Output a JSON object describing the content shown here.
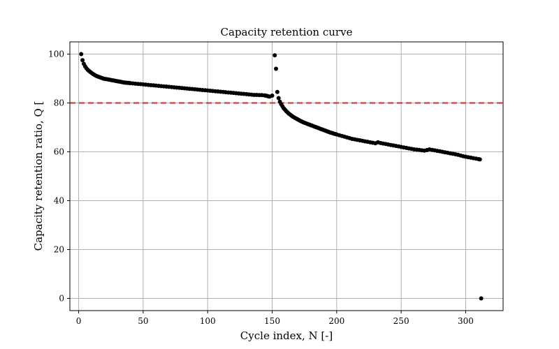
{
  "chart_data": {
    "type": "scatter",
    "title": "Capacity retention curve",
    "xlabel": "Cycle index, N [-]",
    "ylabel": "Capacity retention ratio, Q [",
    "xlim": [
      -6.8,
      329
    ],
    "ylim": [
      -5,
      105
    ],
    "xticks": [
      0,
      50,
      100,
      150,
      200,
      250,
      300
    ],
    "yticks": [
      0,
      20,
      40,
      60,
      80,
      100
    ],
    "grid": true,
    "point_color": "#000000",
    "reference_line": {
      "y": 80,
      "color": "#d62728",
      "style": "dashed"
    },
    "series": [
      {
        "points": [
          [
            2,
            100.0
          ],
          [
            3,
            97.5
          ],
          [
            4,
            96.0
          ],
          [
            5,
            95.0
          ],
          [
            6,
            94.2
          ],
          [
            7,
            93.6
          ],
          [
            8,
            93.1
          ],
          [
            9,
            92.7
          ],
          [
            10,
            92.3
          ],
          [
            11,
            91.9
          ],
          [
            12,
            91.6
          ],
          [
            13,
            91.3
          ],
          [
            14,
            91.0
          ],
          [
            15,
            90.8
          ],
          [
            16,
            90.6
          ],
          [
            17,
            90.4
          ],
          [
            18,
            90.2
          ],
          [
            19,
            90.0
          ],
          [
            20,
            89.9
          ],
          [
            21,
            89.8
          ],
          [
            22,
            89.7
          ],
          [
            23,
            89.6
          ],
          [
            24,
            89.5
          ],
          [
            25,
            89.4
          ],
          [
            26,
            89.3
          ],
          [
            27,
            89.2
          ],
          [
            28,
            89.1
          ],
          [
            29,
            89.0
          ],
          [
            30,
            88.9
          ],
          [
            31,
            88.8
          ],
          [
            32,
            88.7
          ],
          [
            33,
            88.6
          ],
          [
            34,
            88.5
          ],
          [
            35,
            88.4
          ],
          [
            36,
            88.3
          ],
          [
            37,
            88.3
          ],
          [
            38,
            88.2
          ],
          [
            39,
            88.2
          ],
          [
            40,
            88.1
          ],
          [
            42,
            88.0
          ],
          [
            44,
            87.9
          ],
          [
            46,
            87.8
          ],
          [
            48,
            87.7
          ],
          [
            50,
            87.6
          ],
          [
            52,
            87.5
          ],
          [
            54,
            87.4
          ],
          [
            56,
            87.3
          ],
          [
            58,
            87.2
          ],
          [
            60,
            87.1
          ],
          [
            62,
            87.0
          ],
          [
            64,
            86.9
          ],
          [
            66,
            86.8
          ],
          [
            68,
            86.7
          ],
          [
            70,
            86.6
          ],
          [
            72,
            86.5
          ],
          [
            74,
            86.4
          ],
          [
            76,
            86.3
          ],
          [
            78,
            86.2
          ],
          [
            80,
            86.1
          ],
          [
            82,
            86.0
          ],
          [
            84,
            85.9
          ],
          [
            86,
            85.8
          ],
          [
            88,
            85.7
          ],
          [
            90,
            85.6
          ],
          [
            92,
            85.5
          ],
          [
            94,
            85.4
          ],
          [
            96,
            85.3
          ],
          [
            98,
            85.2
          ],
          [
            100,
            85.1
          ],
          [
            102,
            85.0
          ],
          [
            104,
            84.9
          ],
          [
            106,
            84.8
          ],
          [
            108,
            84.7
          ],
          [
            110,
            84.6
          ],
          [
            112,
            84.5
          ],
          [
            114,
            84.4
          ],
          [
            116,
            84.3
          ],
          [
            118,
            84.2
          ],
          [
            120,
            84.1
          ],
          [
            122,
            84.0
          ],
          [
            124,
            83.9
          ],
          [
            126,
            83.8
          ],
          [
            128,
            83.7
          ],
          [
            130,
            83.6
          ],
          [
            132,
            83.5
          ],
          [
            134,
            83.4
          ],
          [
            136,
            83.3
          ],
          [
            138,
            83.3
          ],
          [
            140,
            83.2
          ],
          [
            142,
            83.2
          ],
          [
            144,
            83.1
          ],
          [
            145,
            83.0
          ],
          [
            146,
            82.9
          ],
          [
            147,
            82.7
          ],
          [
            148,
            82.6
          ],
          [
            150,
            83.0
          ],
          [
            152,
            99.5
          ],
          [
            153,
            94.0
          ],
          [
            154,
            84.5
          ],
          [
            155,
            82.0
          ],
          [
            156,
            80.5
          ],
          [
            157,
            79.5
          ],
          [
            158,
            78.6
          ],
          [
            159,
            77.8
          ],
          [
            160,
            77.2
          ],
          [
            161,
            76.6
          ],
          [
            162,
            76.1
          ],
          [
            163,
            75.6
          ],
          [
            164,
            75.2
          ],
          [
            165,
            74.8
          ],
          [
            166,
            74.4
          ],
          [
            167,
            74.1
          ],
          [
            168,
            73.8
          ],
          [
            169,
            73.5
          ],
          [
            170,
            73.2
          ],
          [
            171,
            72.9
          ],
          [
            172,
            72.6
          ],
          [
            173,
            72.4
          ],
          [
            174,
            72.1
          ],
          [
            175,
            71.9
          ],
          [
            176,
            71.7
          ],
          [
            177,
            71.5
          ],
          [
            178,
            71.3
          ],
          [
            179,
            71.1
          ],
          [
            180,
            70.9
          ],
          [
            181,
            70.7
          ],
          [
            182,
            70.5
          ],
          [
            183,
            70.3
          ],
          [
            184,
            70.1
          ],
          [
            185,
            69.9
          ],
          [
            186,
            69.7
          ],
          [
            187,
            69.5
          ],
          [
            188,
            69.3
          ],
          [
            189,
            69.1
          ],
          [
            190,
            68.9
          ],
          [
            191,
            68.7
          ],
          [
            192,
            68.5
          ],
          [
            193,
            68.3
          ],
          [
            194,
            68.1
          ],
          [
            195,
            67.9
          ],
          [
            196,
            67.8
          ],
          [
            197,
            67.6
          ],
          [
            198,
            67.4
          ],
          [
            199,
            67.3
          ],
          [
            200,
            67.1
          ],
          [
            202,
            66.8
          ],
          [
            204,
            66.5
          ],
          [
            206,
            66.2
          ],
          [
            208,
            65.9
          ],
          [
            210,
            65.6
          ],
          [
            212,
            65.3
          ],
          [
            214,
            65.1
          ],
          [
            216,
            64.9
          ],
          [
            218,
            64.7
          ],
          [
            220,
            64.5
          ],
          [
            222,
            64.3
          ],
          [
            224,
            64.1
          ],
          [
            226,
            63.9
          ],
          [
            228,
            63.7
          ],
          [
            230,
            63.5
          ],
          [
            232,
            63.9
          ],
          [
            234,
            63.6
          ],
          [
            236,
            63.4
          ],
          [
            238,
            63.2
          ],
          [
            240,
            63.0
          ],
          [
            242,
            62.8
          ],
          [
            244,
            62.6
          ],
          [
            246,
            62.4
          ],
          [
            248,
            62.2
          ],
          [
            250,
            62.0
          ],
          [
            252,
            61.8
          ],
          [
            254,
            61.6
          ],
          [
            256,
            61.4
          ],
          [
            258,
            61.2
          ],
          [
            260,
            61.0
          ],
          [
            262,
            60.9
          ],
          [
            264,
            60.8
          ],
          [
            266,
            60.6
          ],
          [
            268,
            60.5
          ],
          [
            270,
            60.7
          ],
          [
            272,
            61.0
          ],
          [
            274,
            60.8
          ],
          [
            276,
            60.6
          ],
          [
            278,
            60.4
          ],
          [
            280,
            60.2
          ],
          [
            282,
            60.0
          ],
          [
            284,
            59.8
          ],
          [
            286,
            59.6
          ],
          [
            288,
            59.4
          ],
          [
            290,
            59.2
          ],
          [
            292,
            59.0
          ],
          [
            294,
            58.8
          ],
          [
            296,
            58.5
          ],
          [
            298,
            58.2
          ],
          [
            300,
            58.0
          ],
          [
            302,
            57.8
          ],
          [
            304,
            57.6
          ],
          [
            306,
            57.4
          ],
          [
            308,
            57.2
          ],
          [
            310,
            57.0
          ],
          [
            311,
            56.9
          ],
          [
            312,
            0.0
          ]
        ]
      }
    ]
  }
}
